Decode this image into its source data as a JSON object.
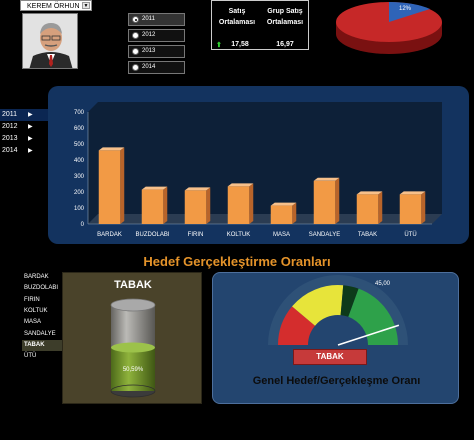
{
  "person_select": {
    "value": "KEREM ÖRHUN"
  },
  "year_radios": [
    {
      "label": "2011",
      "selected": true
    },
    {
      "label": "2012",
      "selected": false
    },
    {
      "label": "2013",
      "selected": false
    },
    {
      "label": "2014",
      "selected": false
    }
  ],
  "stats": {
    "head1": "Satış Ortalaması",
    "head2": "Grup Satış Ortalaması",
    "val1": "17,58",
    "val2": "16,97"
  },
  "pie": {
    "label": "12%",
    "share": 0.12,
    "main_color": "#c62828",
    "slice_color": "#2f64b8"
  },
  "year_list": [
    {
      "label": "2011",
      "selected": true
    },
    {
      "label": "2012",
      "selected": false
    },
    {
      "label": "2013",
      "selected": false
    },
    {
      "label": "2014",
      "selected": false
    }
  ],
  "chart_data": {
    "type": "bar",
    "categories": [
      "BARDAK",
      "BUZDOLABI",
      "FIRIN",
      "KOLTUK",
      "MASA",
      "SANDALYE",
      "TABAK",
      "ÜTÜ"
    ],
    "values": [
      460,
      215,
      210,
      235,
      115,
      270,
      185,
      185
    ],
    "ylim": [
      0,
      700
    ],
    "yticks": [
      0,
      100,
      200,
      300,
      400,
      500,
      600,
      700
    ],
    "grid": false,
    "bar_color": "#f29a45"
  },
  "section_title": "Hedef Gerçekleştirme Oranları",
  "product_list": [
    {
      "label": "BARDAK",
      "selected": false
    },
    {
      "label": "BUZDOLABI",
      "selected": false
    },
    {
      "label": "FIRIN",
      "selected": false
    },
    {
      "label": "KOLTUK",
      "selected": false
    },
    {
      "label": "MASA",
      "selected": false
    },
    {
      "label": "SANDALYE",
      "selected": false
    },
    {
      "label": "TABAK",
      "selected": true
    },
    {
      "label": "ÜTÜ",
      "selected": false
    }
  ],
  "cylinder": {
    "title": "TABAK",
    "label": "50,59%",
    "fill": 0.5059,
    "fill_color": "#6b8f2a"
  },
  "gauge": {
    "value_label": "45,00",
    "value": 45,
    "max": 50,
    "button_label": "TABAK",
    "title": "Genel Hedef/Gerçekleşme Oranı"
  }
}
